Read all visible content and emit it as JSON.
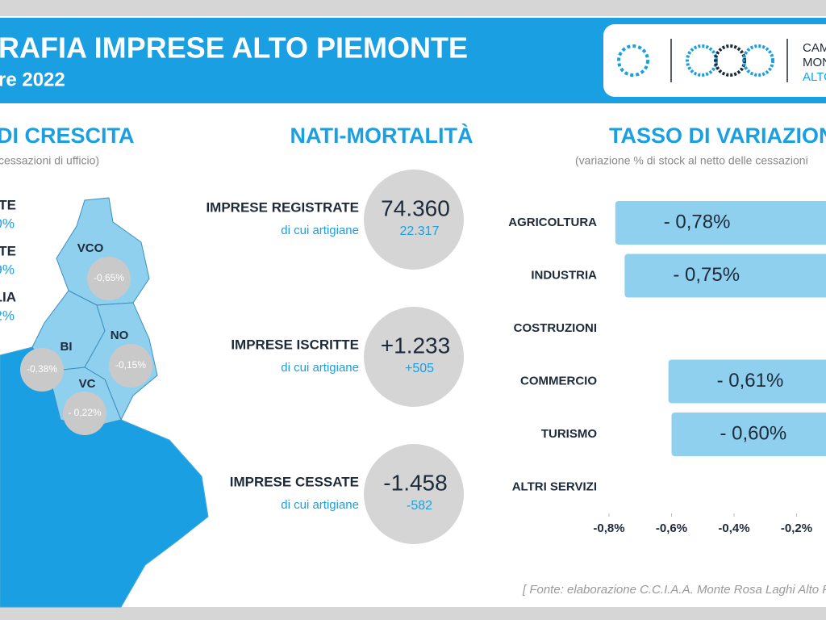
{
  "header": {
    "title": "RAFIA IMPRESE ALTO PIEMONTE",
    "subtitle": "re 2022",
    "logo_lines": [
      "CAM",
      "MON",
      "ALTO"
    ]
  },
  "growth": {
    "title": "DI CRESCITA",
    "subtitle": "cessazioni di ufficio)",
    "stats": [
      {
        "label": "TE",
        "value": "0%"
      },
      {
        "label": "TE",
        "value": "9%"
      },
      {
        "label": "LIA",
        "value": "2%"
      }
    ],
    "map": [
      {
        "name": "VCO",
        "rate": "-0,65%"
      },
      {
        "name": "BI",
        "rate": "-0,38%"
      },
      {
        "name": "NO",
        "rate": "-0,15%"
      },
      {
        "name": "VC",
        "rate": "- 0,22%"
      }
    ]
  },
  "demography": {
    "title": "NATI-MORTALITÀ",
    "cards": [
      {
        "label": "IMPRESE REGISTRATE",
        "sublabel": "di cui artigiane",
        "value": "74.360",
        "subvalue": "22.317"
      },
      {
        "label": "IMPRESE ISCRITTE",
        "sublabel": "di cui artigiane",
        "value": "+1.233",
        "subvalue": "+505"
      },
      {
        "label": "IMPRESE CESSATE",
        "sublabel": "di cui artigiane",
        "value": "-1.458",
        "subvalue": "-582"
      }
    ]
  },
  "chart_data": {
    "type": "hbar",
    "title": "TASSO DI VARIAZION",
    "subtitle": "(variazione % di stock al netto delle cessazioni",
    "categories": [
      "AGRICOLTURA",
      "INDUSTRIA",
      "COSTRUZIONI",
      "COMMERCIO",
      "TURISMO",
      "ALTRI SERVIZI"
    ],
    "values": [
      -0.78,
      -0.75,
      null,
      -0.61,
      -0.6,
      null
    ],
    "value_labels": [
      "- 0,78%",
      "- 0,75%",
      null,
      "- 0,61%",
      "- 0,60%",
      null
    ],
    "color": "#8fd0ef",
    "xlim": [
      -0.8,
      0
    ],
    "xticks": [
      {
        "value": -0.8,
        "label": "-0,8%"
      },
      {
        "value": -0.6,
        "label": "-0,6%"
      },
      {
        "value": -0.4,
        "label": "-0,4%"
      },
      {
        "value": -0.2,
        "label": "-0,2%"
      }
    ]
  },
  "footer": "[ Fonte: elaborazione C.C.I.A.A. Monte Rosa Laghi Alto Piemon"
}
